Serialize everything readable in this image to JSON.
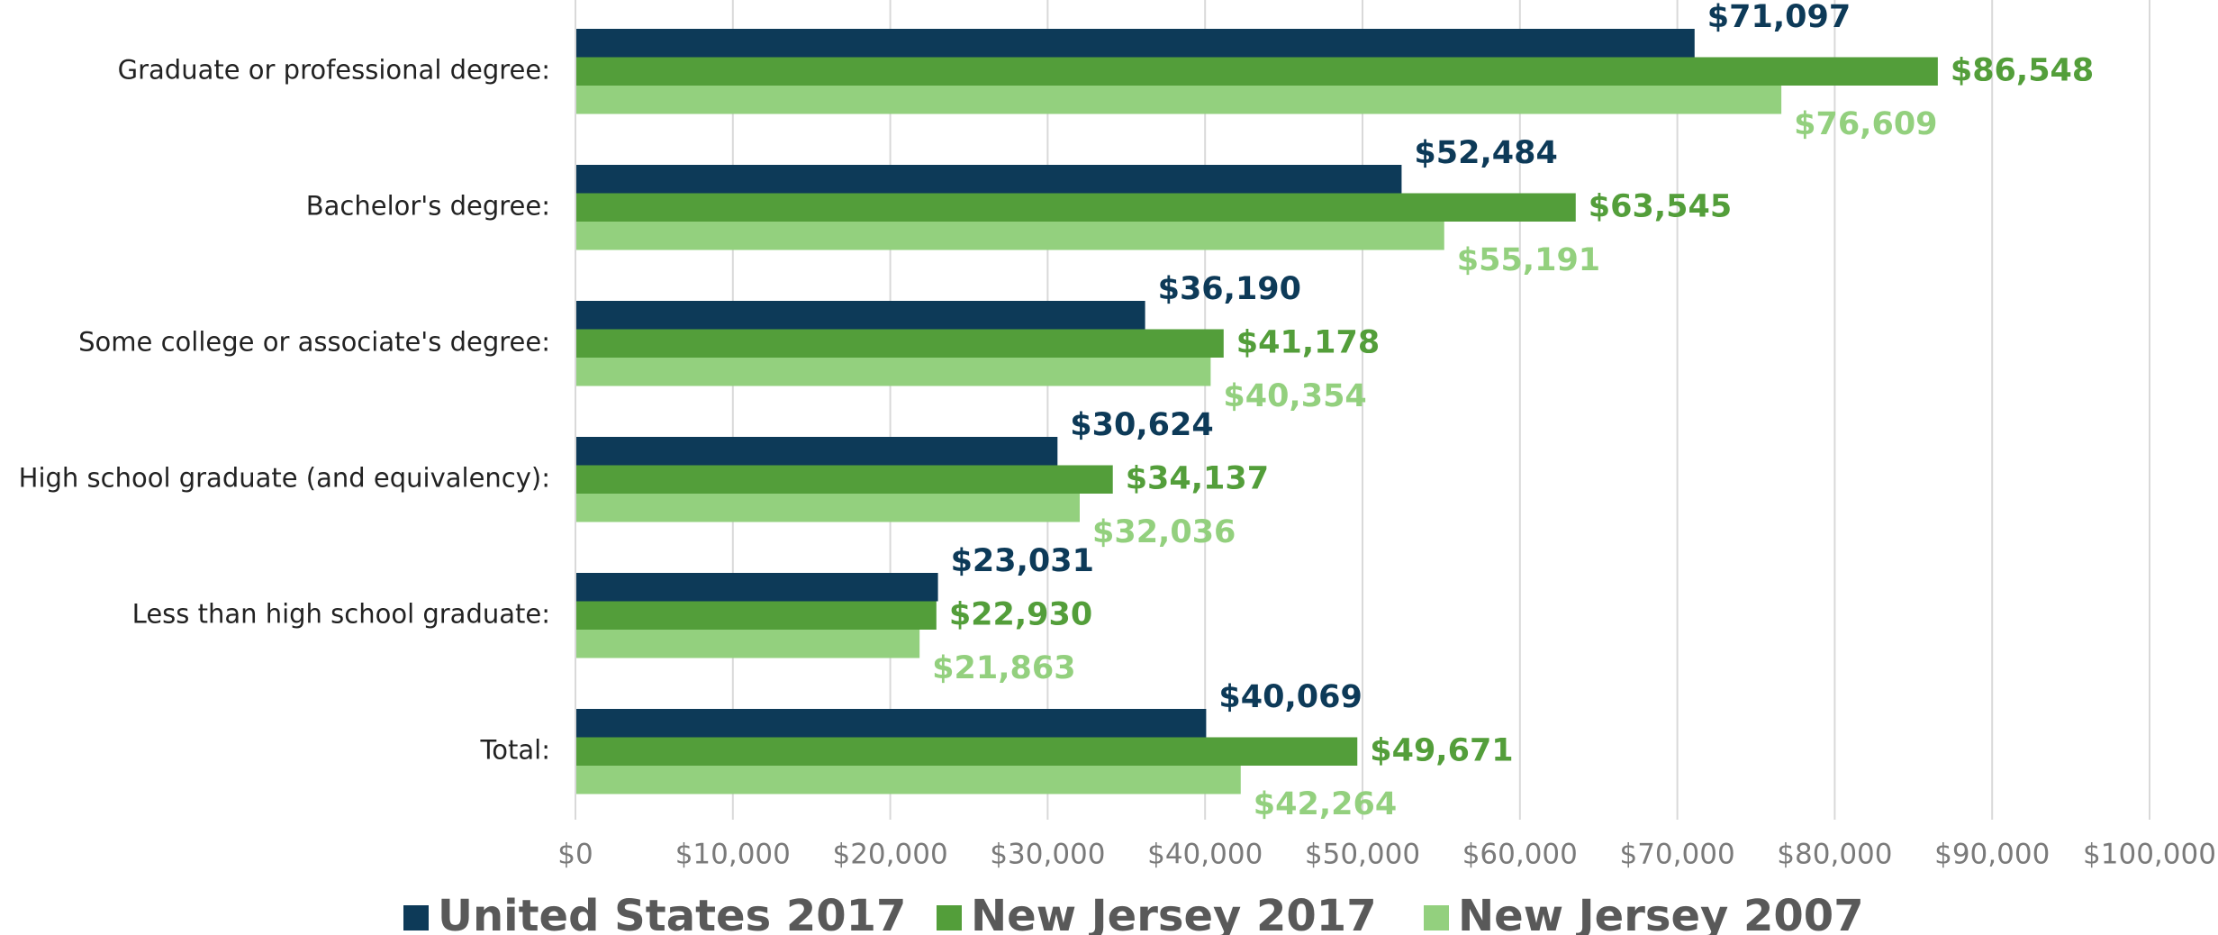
{
  "chart_data": {
    "type": "hbar",
    "categories": [
      "Graduate or professional degree:",
      "Bachelor's degree:",
      "Some college or associate's degree:",
      "High school graduate (and equivalency):",
      "Less than high school graduate:",
      "Total:"
    ],
    "series": [
      {
        "name": "United States 2017",
        "color": "#0d3a58",
        "values": [
          71097,
          52484,
          36190,
          30624,
          23031,
          40069
        ],
        "value_labels": [
          "$71,097",
          "$52,484",
          "$36,190",
          "$30,624",
          "$23,031",
          "$40,069"
        ]
      },
      {
        "name": "New Jersey 2017",
        "color": "#539e3a",
        "values": [
          86548,
          63545,
          41178,
          34137,
          22930,
          49671
        ],
        "value_labels": [
          "$86,548",
          "$63,545",
          "$41,178",
          "$34,137",
          "$22,930",
          "$49,671"
        ]
      },
      {
        "name": "New Jersey 2007",
        "color": "#93d07e",
        "values": [
          76609,
          55191,
          40354,
          32036,
          21863,
          42264
        ],
        "value_labels": [
          "$76,609",
          "$55,191",
          "$40,354",
          "$32,036",
          "$21,863",
          "$42,264"
        ]
      }
    ],
    "xlim": [
      0,
      100000
    ],
    "xticks": [
      {
        "value": 0,
        "label": "$0"
      },
      {
        "value": 10000,
        "label": "$10,000"
      },
      {
        "value": 20000,
        "label": "$20,000"
      },
      {
        "value": 30000,
        "label": "$30,000"
      },
      {
        "value": 40000,
        "label": "$40,000"
      },
      {
        "value": 50000,
        "label": "$50,000"
      },
      {
        "value": 60000,
        "label": "$60,000"
      },
      {
        "value": 70000,
        "label": "$70,000"
      },
      {
        "value": 80000,
        "label": "$80,000"
      },
      {
        "value": 90000,
        "label": "$90,000"
      },
      {
        "value": 100000,
        "label": "$100,000"
      }
    ],
    "grid": true,
    "legend": "bottom"
  }
}
